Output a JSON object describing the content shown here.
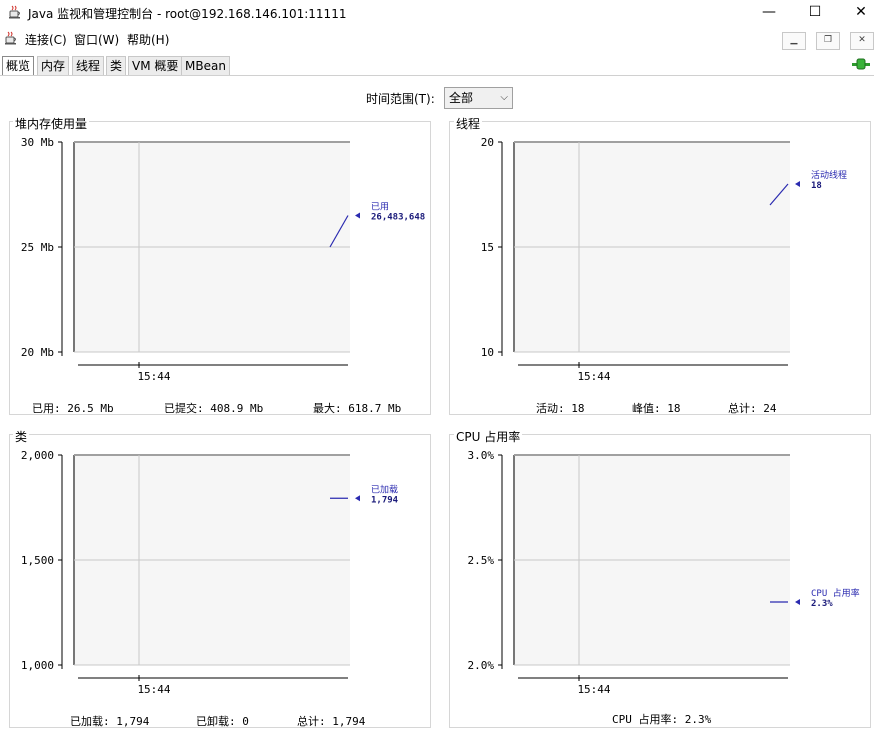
{
  "window": {
    "title": "Java 监视和管理控制台 - root@192.168.146.101:11111",
    "minimize": "—",
    "maximize": "☐",
    "close": "✕"
  },
  "menu": {
    "items": [
      "连接(C)",
      "窗口(W)",
      "帮助(H)"
    ],
    "mdi_min": "▁",
    "mdi_restore": "❐",
    "mdi_close": "✕"
  },
  "tabs": [
    "概览",
    "内存",
    "线程",
    "类",
    "VM 概要",
    "MBean"
  ],
  "active_tab": "概览",
  "range": {
    "label": "时间范围(T):",
    "value": "全部"
  },
  "colors": {
    "line": "#2b2bb0",
    "grid": "#c8c8c8",
    "plot_bg": "#f6f6f6",
    "connected": "#2e9a2e"
  },
  "panels": [
    {
      "title": "堆内存使用量",
      "series_label": "已用",
      "series_value": "26,483,648",
      "footer": [
        "已用: 26.5 Mb",
        "已提交: 408.9 Mb",
        "最大: 618.7 Mb"
      ]
    },
    {
      "title": "线程",
      "series_label": "活动线程",
      "series_value": "18",
      "footer": [
        "活动: 18",
        "峰值: 18",
        "总计: 24"
      ]
    },
    {
      "title": "类",
      "series_label": "已加载",
      "series_value": "1,794",
      "footer": [
        "已加载: 1,794",
        "已卸载: 0",
        "总计: 1,794"
      ]
    },
    {
      "title": "CPU 占用率",
      "series_label": "CPU 占用率",
      "series_value": "2.3%",
      "footer": [
        "CPU 占用率: 2.3%"
      ]
    }
  ],
  "chart_data": [
    {
      "type": "line",
      "title": "堆内存使用量",
      "yticks": [
        "30 Mb",
        "25 Mb",
        "20 Mb"
      ],
      "ylim": [
        20,
        30
      ],
      "xticks": [
        "15:44"
      ],
      "series": [
        {
          "name": "已用",
          "y_start": 25.0,
          "y_end": 26.5
        }
      ]
    },
    {
      "type": "line",
      "title": "线程",
      "yticks": [
        "20",
        "15",
        "10"
      ],
      "ylim": [
        10,
        20
      ],
      "xticks": [
        "15:44"
      ],
      "series": [
        {
          "name": "活动线程",
          "y_start": 17.0,
          "y_end": 18.0
        }
      ]
    },
    {
      "type": "line",
      "title": "类",
      "yticks": [
        "2,000",
        "1,500",
        "1,000"
      ],
      "ylim": [
        1000,
        2000
      ],
      "xticks": [
        "15:44"
      ],
      "series": [
        {
          "name": "已加载",
          "y_start": 1794,
          "y_end": 1794
        }
      ]
    },
    {
      "type": "line",
      "title": "CPU 占用率",
      "yticks": [
        "3.0%",
        "2.5%",
        "2.0%"
      ],
      "ylim": [
        2.0,
        3.0
      ],
      "xticks": [
        "15:44"
      ],
      "series": [
        {
          "name": "CPU 占用率",
          "y_start": 2.3,
          "y_end": 2.3
        }
      ]
    }
  ]
}
